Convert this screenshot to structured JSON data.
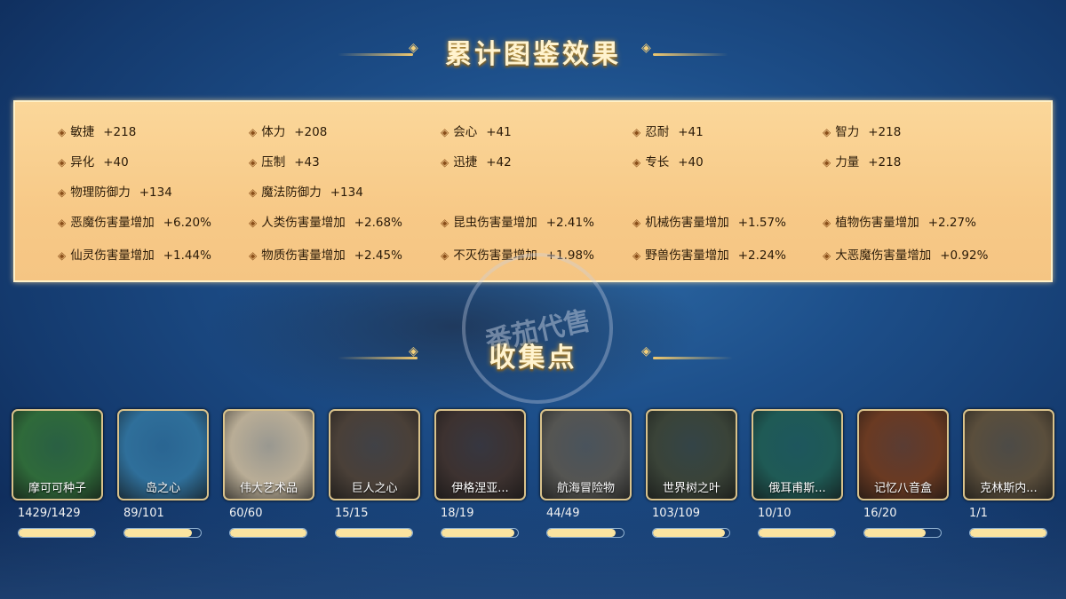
{
  "titles": {
    "effects": "累计图鉴效果",
    "collection": "收集点"
  },
  "watermark": "番茄代售",
  "stats": [
    [
      {
        "name": "敏捷",
        "value": "+218"
      },
      {
        "name": "体力",
        "value": "+208"
      },
      {
        "name": "会心",
        "value": "+41"
      },
      {
        "name": "忍耐",
        "value": "+41"
      },
      {
        "name": "智力",
        "value": "+218"
      }
    ],
    [
      {
        "name": "异化",
        "value": "+40"
      },
      {
        "name": "压制",
        "value": "+43"
      },
      {
        "name": "迅捷",
        "value": "+42"
      },
      {
        "name": "专长",
        "value": "+40"
      },
      {
        "name": "力量",
        "value": "+218"
      }
    ],
    [
      {
        "name": "物理防御力",
        "value": "+134"
      },
      {
        "name": "魔法防御力",
        "value": "+134"
      }
    ],
    [
      {
        "name": "恶魔伤害量增加",
        "value": "+6.20%"
      },
      {
        "name": "人类伤害量增加",
        "value": "+2.68%"
      },
      {
        "name": "昆虫伤害量增加",
        "value": "+2.41%"
      },
      {
        "name": "机械伤害量增加",
        "value": "+1.57%"
      },
      {
        "name": "植物伤害量增加",
        "value": "+2.27%"
      }
    ],
    [
      {
        "name": "仙灵伤害量增加",
        "value": "+1.44%"
      },
      {
        "name": "物质伤害量增加",
        "value": "+2.45%"
      },
      {
        "name": "不灭伤害量增加",
        "value": "+1.98%"
      },
      {
        "name": "野兽伤害量增加",
        "value": "+2.24%"
      },
      {
        "name": "大恶魔伤害量增加",
        "value": "+0.92%"
      }
    ]
  ],
  "collections": [
    {
      "name": "摩可可种子",
      "count": "1429/1429",
      "progress": 1.0,
      "color": "#2f6a3a"
    },
    {
      "name": "岛之心",
      "count": "89/101",
      "progress": 0.88,
      "color": "#2f6f9a"
    },
    {
      "name": "伟大艺术品",
      "count": "60/60",
      "progress": 1.0,
      "color": "#b9ad96"
    },
    {
      "name": "巨人之心",
      "count": "15/15",
      "progress": 1.0,
      "color": "#4a4038"
    },
    {
      "name": "伊格涅亚...",
      "count": "18/19",
      "progress": 0.95,
      "color": "#3d3230"
    },
    {
      "name": "航海冒险物",
      "count": "44/49",
      "progress": 0.9,
      "color": "#555552"
    },
    {
      "name": "世界树之叶",
      "count": "103/109",
      "progress": 0.94,
      "color": "#3a4338"
    },
    {
      "name": "俄耳甫斯...",
      "count": "10/10",
      "progress": 1.0,
      "color": "#1f5a55"
    },
    {
      "name": "记忆八音盒",
      "count": "16/20",
      "progress": 0.8,
      "color": "#6a3a22"
    },
    {
      "name": "克林斯内...",
      "count": "1/1",
      "progress": 1.0,
      "color": "#5a4e3c"
    }
  ]
}
